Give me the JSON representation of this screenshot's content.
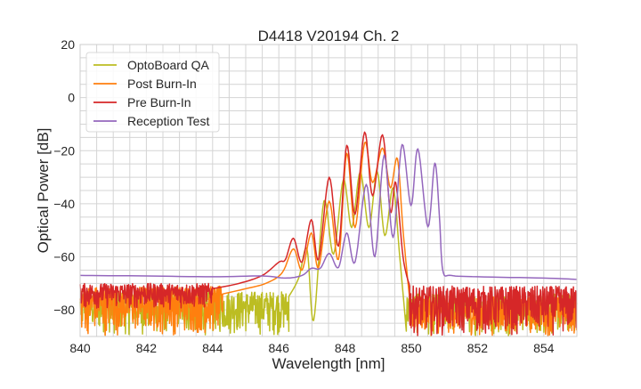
{
  "chart_data": {
    "type": "line",
    "title": "D4418 V20194 Ch. 2",
    "xlabel": "Wavelength [nm]",
    "ylabel": "Optical Power [dB]",
    "xlim": [
      840,
      855
    ],
    "ylim": [
      -90,
      20
    ],
    "xticks": [
      840,
      842,
      844,
      846,
      848,
      850,
      852,
      854
    ],
    "yticks": [
      20,
      0,
      -20,
      -40,
      -60,
      -80
    ],
    "grid": true,
    "legend_position": "top-left",
    "series": [
      {
        "name": "OptoBoard QA",
        "color": "#bcbd22",
        "noise": [
          {
            "from": 840,
            "to": 846.3,
            "min": -90,
            "max": -73
          },
          {
            "from": 849.85,
            "to": 855,
            "min": -90,
            "max": -74
          }
        ],
        "points": [
          [
            846.3,
            -75
          ],
          [
            846.6,
            -68
          ],
          [
            846.85,
            -57
          ],
          [
            847.05,
            -84
          ],
          [
            847.36,
            -39
          ],
          [
            847.65,
            -59
          ],
          [
            847.95,
            -31
          ],
          [
            848.2,
            -49
          ],
          [
            848.46,
            -28
          ],
          [
            848.72,
            -49
          ],
          [
            848.97,
            -28
          ],
          [
            849.2,
            -52
          ],
          [
            849.45,
            -34
          ],
          [
            849.65,
            -60
          ],
          [
            849.85,
            -88
          ]
        ]
      },
      {
        "name": "Post Burn-In",
        "color": "#ff7f0e",
        "noise": [
          {
            "from": 840,
            "to": 844.3,
            "min": -90,
            "max": -71
          },
          {
            "from": 849.95,
            "to": 855,
            "min": -90,
            "max": -75
          }
        ],
        "points": [
          [
            844.3,
            -74
          ],
          [
            845,
            -72
          ],
          [
            845.6,
            -70
          ],
          [
            846.1,
            -66
          ],
          [
            846.44,
            -57
          ],
          [
            846.7,
            -65
          ],
          [
            846.98,
            -51
          ],
          [
            847.2,
            -64
          ],
          [
            847.52,
            -39
          ],
          [
            847.8,
            -61
          ],
          [
            848.05,
            -21
          ],
          [
            848.3,
            -49
          ],
          [
            848.59,
            -17
          ],
          [
            848.83,
            -32
          ],
          [
            849.13,
            -19
          ],
          [
            849.37,
            -34
          ],
          [
            849.58,
            -23
          ],
          [
            849.75,
            -50
          ],
          [
            849.95,
            -76
          ]
        ]
      },
      {
        "name": "Pre Burn-In",
        "color": "#d62728",
        "noise": [
          {
            "from": 840,
            "to": 844.0,
            "min": -80,
            "max": -70
          },
          {
            "from": 849.95,
            "to": 855,
            "min": -90,
            "max": -71
          }
        ],
        "points": [
          [
            844.0,
            -72
          ],
          [
            844.8,
            -70
          ],
          [
            845.5,
            -67
          ],
          [
            846.0,
            -62
          ],
          [
            846.2,
            -61
          ],
          [
            846.44,
            -53
          ],
          [
            846.7,
            -62
          ],
          [
            846.98,
            -46
          ],
          [
            847.2,
            -61
          ],
          [
            847.52,
            -30
          ],
          [
            847.8,
            -56
          ],
          [
            848.05,
            -18
          ],
          [
            848.3,
            -44
          ],
          [
            848.59,
            -13
          ],
          [
            848.83,
            -37
          ],
          [
            849.13,
            -14
          ],
          [
            849.37,
            -43
          ],
          [
            849.53,
            -32
          ],
          [
            849.75,
            -60
          ],
          [
            849.95,
            -71
          ]
        ]
      },
      {
        "name": "Reception Test",
        "color": "#9467bd",
        "noise": [],
        "points": [
          [
            840,
            -67
          ],
          [
            842,
            -67.2
          ],
          [
            844,
            -67.5
          ],
          [
            845.5,
            -67.2
          ],
          [
            846.2,
            -68
          ],
          [
            846.7,
            -67
          ],
          [
            846.98,
            -64.3
          ],
          [
            847.25,
            -64.3
          ],
          [
            847.52,
            -58.7
          ],
          [
            847.8,
            -64
          ],
          [
            848.05,
            -51
          ],
          [
            848.3,
            -62
          ],
          [
            848.64,
            -32.7
          ],
          [
            848.9,
            -60
          ],
          [
            849.18,
            -21.7
          ],
          [
            849.45,
            -52.7
          ],
          [
            849.72,
            -17.7
          ],
          [
            849.99,
            -40.7
          ],
          [
            850.2,
            -19.3
          ],
          [
            850.5,
            -48.7
          ],
          [
            850.71,
            -24.7
          ],
          [
            850.85,
            -45
          ],
          [
            850.95,
            -65
          ],
          [
            851.2,
            -67
          ],
          [
            852,
            -67.5
          ],
          [
            854,
            -68
          ],
          [
            855,
            -68.5
          ]
        ]
      }
    ]
  }
}
